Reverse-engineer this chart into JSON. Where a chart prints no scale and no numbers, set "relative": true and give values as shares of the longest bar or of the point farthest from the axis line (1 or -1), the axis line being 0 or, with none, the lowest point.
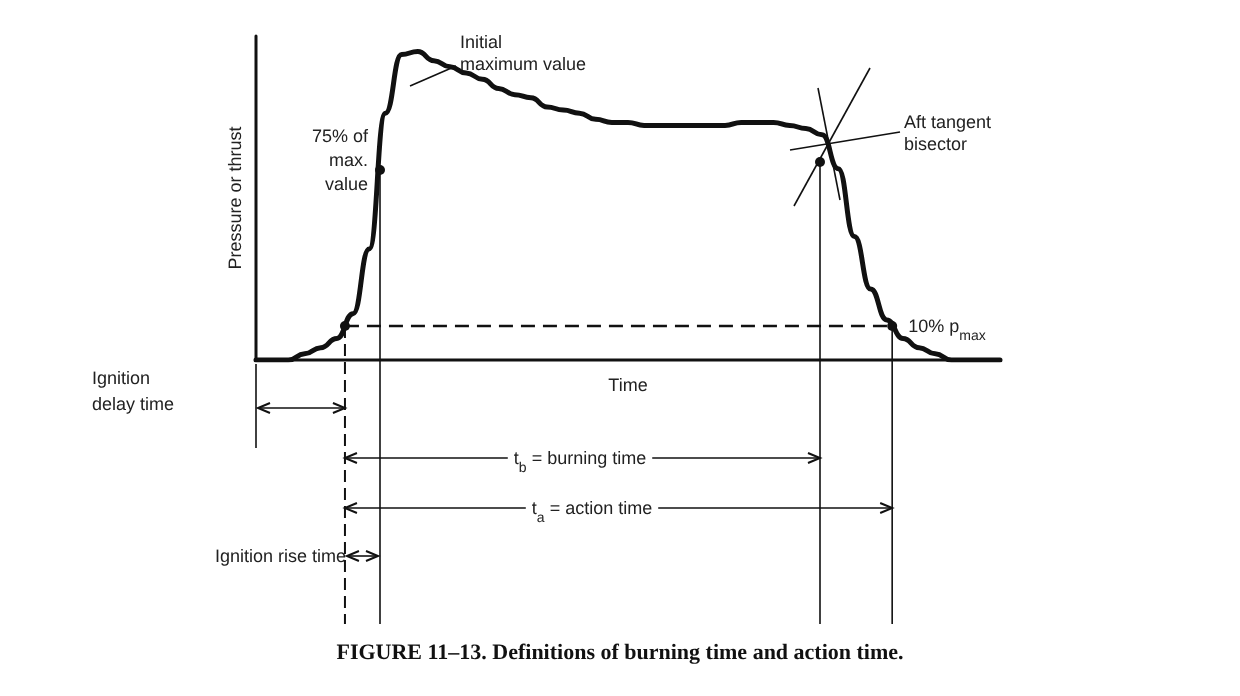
{
  "chart_data": {
    "type": "line",
    "relative": true,
    "title": "FIGURE 11–13. Definitions of burning time and action time.",
    "xlabel": "Time",
    "ylabel": "Pressure or thrust",
    "color": "#111111",
    "line_style": "solid",
    "categories": [
      null,
      null,
      null,
      null,
      null,
      null,
      null,
      null,
      null,
      null,
      null,
      null,
      null,
      null,
      null,
      null,
      null,
      null,
      null,
      null,
      null,
      null,
      null,
      null,
      null,
      null,
      null,
      null,
      null,
      null,
      null,
      null,
      null,
      null,
      null,
      null,
      null,
      null,
      null,
      null,
      null,
      null,
      null,
      null,
      null,
      null,
      null
    ],
    "values": [
      0,
      0,
      0,
      0.02,
      0.04,
      0.07,
      0.15,
      0.36,
      0.8,
      0.99,
      1,
      0.97,
      0.95,
      0.93,
      0.91,
      0.88,
      0.86,
      0.85,
      0.82,
      0.81,
      0.8,
      0.78,
      0.77,
      0.77,
      0.76,
      0.76,
      0.76,
      0.76,
      0.76,
      0.76,
      0.77,
      0.77,
      0.77,
      0.76,
      0.75,
      0.73,
      0.62,
      0.4,
      0.23,
      0.13,
      0.07,
      0.04,
      0.02,
      0,
      0,
      0,
      0
    ],
    "ref_lines": [
      {
        "axis": "y",
        "value": 0.11,
        "label": "10% p$_{max}$",
        "line_style": "dashed"
      }
    ],
    "annotations": [
      "Initial maximum value",
      "75% of max. value",
      "Aft tangent bisector",
      "Ignition delay time",
      "t$_{b}$ = burning time",
      "t$_{a}$ = action time",
      "Ignition rise time"
    ]
  }
}
